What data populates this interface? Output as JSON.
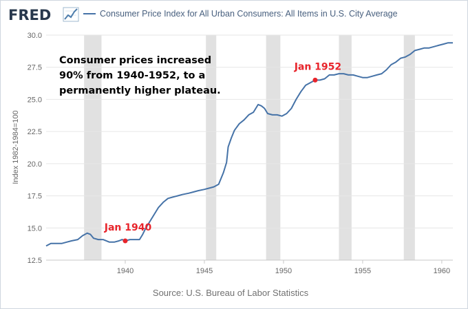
{
  "branding": {
    "logo_text": "FRED",
    "logo_icon": "trend-line-icon"
  },
  "colors": {
    "series": "#4572a7",
    "recession": "#e1e1e1",
    "marker": "#e8242b",
    "grid": "#e6e6e6"
  },
  "annotations": {
    "callout_lines": [
      "Consumer prices increased",
      "90% from 1940-1952, to a",
      "permanently higher plateau."
    ],
    "markers": [
      {
        "label": "Jan 1940",
        "x": 1940.0,
        "y": 14.0
      },
      {
        "label": "Jan 1952",
        "x": 1952.0,
        "y": 26.5
      }
    ]
  },
  "chart_data": {
    "type": "line",
    "title": "Consumer Price Index for All Urban Consumers: All Items in U.S. City Average",
    "xlabel": "",
    "ylabel": "Index 1982-1984=100",
    "xlim": [
      1935.0,
      1960.7
    ],
    "ylim": [
      12.5,
      30.0
    ],
    "xticks": [
      1940,
      1945,
      1950,
      1955,
      1960
    ],
    "yticks": [
      12.5,
      15.0,
      17.5,
      20.0,
      22.5,
      25.0,
      27.5,
      30.0
    ],
    "ytick_labels": [
      "12.5",
      "15.0",
      "17.5",
      "20.0",
      "22.5",
      "25.0",
      "27.5",
      "30.0"
    ],
    "grid": true,
    "source": "Source: U.S. Bureau of Labor Statistics",
    "recessions": [
      [
        1937.4,
        1938.5
      ],
      [
        1945.1,
        1945.75
      ],
      [
        1948.9,
        1949.8
      ],
      [
        1953.5,
        1954.3
      ],
      [
        1957.6,
        1958.3
      ]
    ],
    "series": [
      {
        "name": "Consumer Price Index for All Urban Consumers: All Items in U.S. City Average",
        "x": [
          1935.0,
          1935.3,
          1935.6,
          1936.0,
          1936.3,
          1936.6,
          1937.0,
          1937.3,
          1937.6,
          1937.8,
          1938.0,
          1938.3,
          1938.6,
          1939.0,
          1939.3,
          1939.6,
          1939.8,
          1940.0,
          1940.3,
          1940.6,
          1940.9,
          1941.1,
          1941.3,
          1941.6,
          1941.9,
          1942.1,
          1942.4,
          1942.7,
          1943.0,
          1943.3,
          1943.6,
          1944.0,
          1944.3,
          1944.6,
          1945.0,
          1945.3,
          1945.6,
          1945.9,
          1946.2,
          1946.4,
          1946.5,
          1946.7,
          1946.9,
          1947.2,
          1947.5,
          1947.8,
          1948.1,
          1948.4,
          1948.6,
          1948.8,
          1949.0,
          1949.3,
          1949.6,
          1949.9,
          1950.2,
          1950.5,
          1950.8,
          1951.1,
          1951.4,
          1951.7,
          1952.0,
          1952.3,
          1952.6,
          1952.9,
          1953.2,
          1953.5,
          1953.8,
          1954.1,
          1954.4,
          1954.7,
          1955.0,
          1955.3,
          1955.6,
          1955.9,
          1956.2,
          1956.5,
          1956.8,
          1957.1,
          1957.4,
          1957.7,
          1958.0,
          1958.3,
          1958.6,
          1958.9,
          1959.2,
          1959.5,
          1959.8,
          1960.1,
          1960.4,
          1960.7
        ],
        "values": [
          13.6,
          13.8,
          13.8,
          13.8,
          13.9,
          14.0,
          14.1,
          14.4,
          14.6,
          14.5,
          14.2,
          14.1,
          14.1,
          13.9,
          13.9,
          14.0,
          14.1,
          14.0,
          14.1,
          14.1,
          14.1,
          14.5,
          15.0,
          15.6,
          16.2,
          16.6,
          17.0,
          17.3,
          17.4,
          17.5,
          17.6,
          17.7,
          17.8,
          17.9,
          18.0,
          18.1,
          18.2,
          18.4,
          19.3,
          20.1,
          21.3,
          22.0,
          22.6,
          23.1,
          23.4,
          23.8,
          24.0,
          24.6,
          24.5,
          24.3,
          23.9,
          23.8,
          23.8,
          23.7,
          23.9,
          24.3,
          25.0,
          25.6,
          26.1,
          26.3,
          26.5,
          26.5,
          26.6,
          26.9,
          26.9,
          27.0,
          27.0,
          26.9,
          26.9,
          26.8,
          26.7,
          26.7,
          26.8,
          26.9,
          27.0,
          27.3,
          27.7,
          27.9,
          28.2,
          28.3,
          28.5,
          28.8,
          28.9,
          29.0,
          29.0,
          29.1,
          29.2,
          29.3,
          29.4,
          29.4
        ]
      }
    ]
  }
}
